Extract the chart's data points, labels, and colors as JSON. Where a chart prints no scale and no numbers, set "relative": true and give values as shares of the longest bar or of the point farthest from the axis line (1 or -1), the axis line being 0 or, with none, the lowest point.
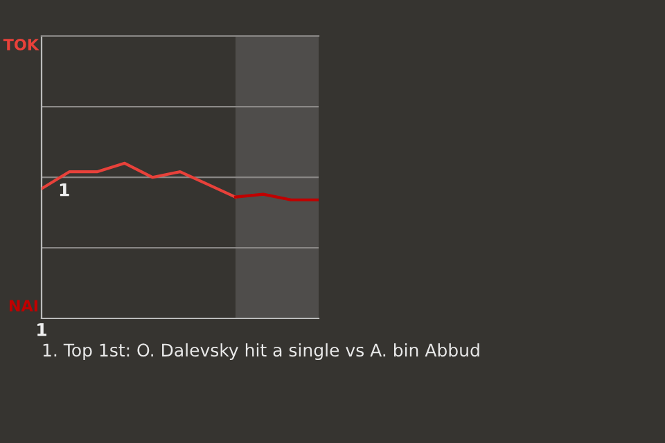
{
  "chart_data": {
    "type": "line",
    "relative": true,
    "categories": [
      null,
      null,
      null,
      null,
      null,
      null,
      null,
      null,
      null,
      null,
      null
    ],
    "series": [
      {
        "color": "#e8413a",
        "values": [
          0.836,
          0.945,
          0.945,
          1,
          0.909,
          0.945,
          0.864,
          0.782,
          null,
          null,
          null
        ]
      },
      {
        "color": "#c00000",
        "values": [
          null,
          null,
          null,
          null,
          null,
          null,
          null,
          0.782,
          0.8,
          0.764,
          0.764
        ]
      }
    ],
    "ref_lines": [
      {
        "axis": "y",
        "value": 0.455,
        "color": "#8a8886"
      },
      {
        "axis": "y",
        "value": 0.909,
        "color": "#8a8886"
      },
      {
        "axis": "y",
        "value": 1.364,
        "color": "#8a8886"
      }
    ],
    "legend": false,
    "marker": "none",
    "line_style": "solid",
    "annotations": [
      "TOK",
      "NAI",
      "1",
      "1",
      "1. Top 1st: O. Dalevsky hit a single vs A. bin Abbud"
    ]
  }
}
